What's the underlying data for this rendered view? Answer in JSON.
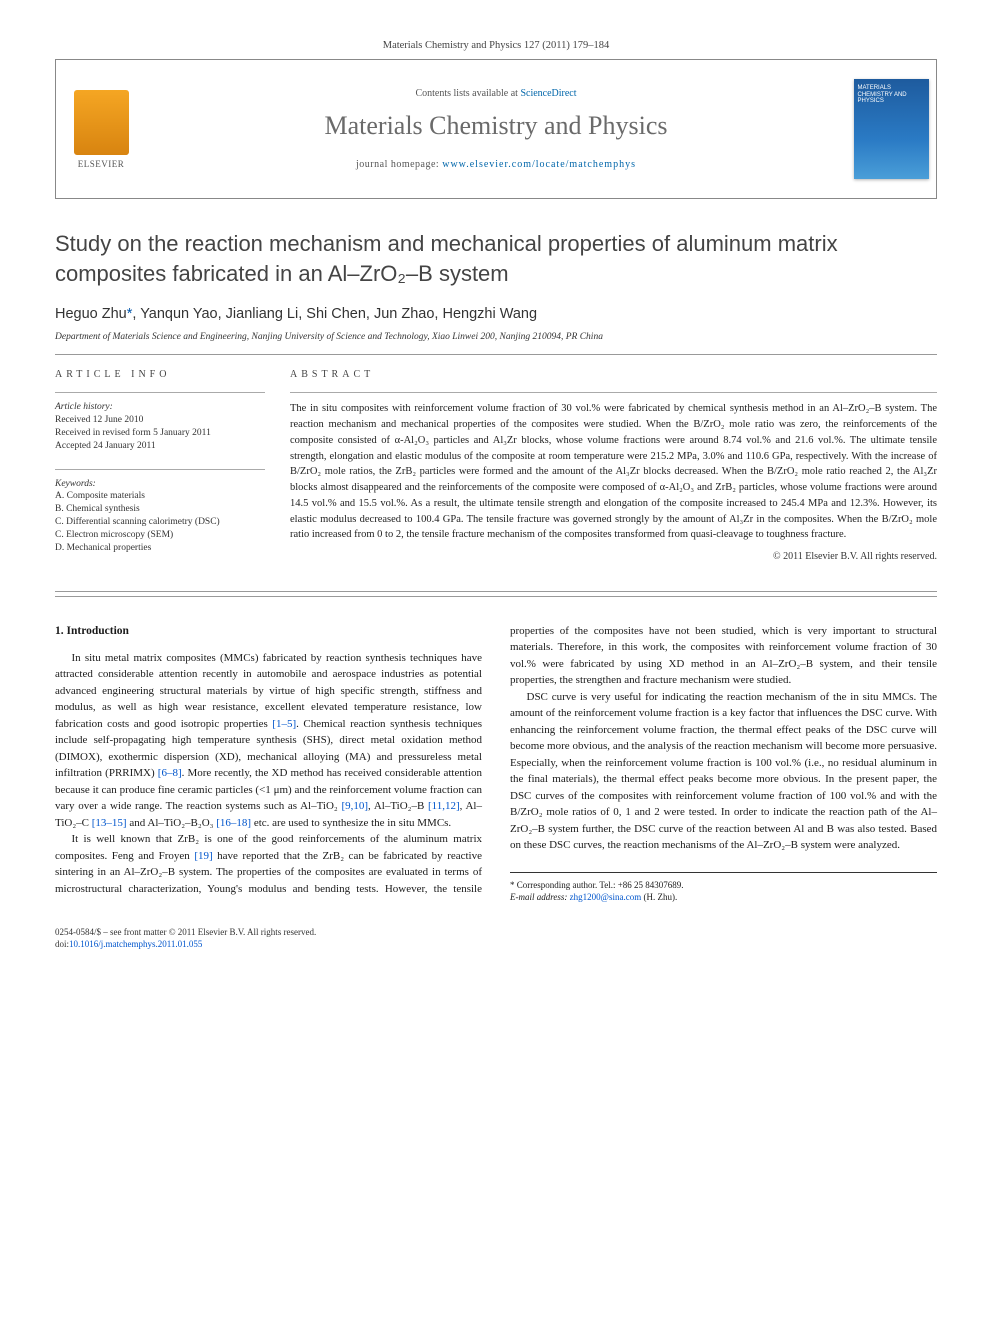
{
  "journal_ref": "Materials Chemistry and Physics 127 (2011) 179–184",
  "header": {
    "contents_prefix": "Contents lists available at ",
    "contents_link": "ScienceDirect",
    "journal_title": "Materials Chemistry and Physics",
    "homepage_prefix": "journal homepage: ",
    "homepage_link": "www.elsevier.com/locate/matchemphys",
    "elsevier_label": "ELSEVIER",
    "cover_text": "MATERIALS CHEMISTRY AND PHYSICS"
  },
  "title": "Study on the reaction mechanism and mechanical properties of aluminum matrix composites fabricated in an Al–ZrO₂–B system",
  "authors_html": "Heguo Zhu<span class='corr'>*</span>, Yanqun Yao, Jianliang Li, Shi Chen, Jun Zhao, Hengzhi Wang",
  "affiliation": "Department of Materials Science and Engineering, Nanjing University of Science and Technology, Xiao Linwei 200, Nanjing 210094, PR China",
  "info": {
    "heading": "article info",
    "history_label": "Article history:",
    "received": "Received 12 June 2010",
    "revised": "Received in revised form 5 January 2011",
    "accepted": "Accepted 24 January 2011",
    "keywords_label": "Keywords:",
    "kw1": "A. Composite materials",
    "kw2": "B. Chemical synthesis",
    "kw3": "C. Differential scanning calorimetry (DSC)",
    "kw4": "C. Electron microscopy (SEM)",
    "kw5": "D. Mechanical properties"
  },
  "abstract": {
    "heading": "abstract",
    "text": "The in situ composites with reinforcement volume fraction of 30 vol.% were fabricated by chemical synthesis method in an Al–ZrO₂–B system. The reaction mechanism and mechanical properties of the composites were studied. When the B/ZrO₂ mole ratio was zero, the reinforcements of the composite consisted of α-Al₂O₃ particles and Al₃Zr blocks, whose volume fractions were around 8.74 vol.% and 21.6 vol.%. The ultimate tensile strength, elongation and elastic modulus of the composite at room temperature were 215.2 MPa, 3.0% and 110.6 GPa, respectively. With the increase of B/ZrO₂ mole ratios, the ZrB₂ particles were formed and the amount of the Al₃Zr blocks decreased. When the B/ZrO₂ mole ratio reached 2, the Al₃Zr blocks almost disappeared and the reinforcements of the composite were composed of α-Al₂O₃ and ZrB₂ particles, whose volume fractions were around 14.5 vol.% and 15.5 vol.%. As a result, the ultimate tensile strength and elongation of the composite increased to 245.4 MPa and 12.3%. However, its elastic modulus decreased to 100.4 GPa. The tensile fracture was governed strongly by the amount of Al₃Zr in the composites. When the B/ZrO₂ mole ratio increased from 0 to 2, the tensile fracture mechanism of the composites transformed from quasi-cleavage to toughness fracture.",
    "copyright": "© 2011 Elsevier B.V. All rights reserved."
  },
  "body": {
    "heading1": "1. Introduction",
    "p1": "In situ metal matrix composites (MMCs) fabricated by reaction synthesis techniques have attracted considerable attention recently in automobile and aerospace industries as potential advanced engineering structural materials by virtue of high specific strength, stiffness and modulus, as well as high wear resistance, excellent elevated temperature resistance, low fabrication costs and good isotropic properties ",
    "r1": "[1–5]",
    "p1b": ". Chemical reaction synthesis techniques include self-propagating high temperature synthesis (SHS), direct metal oxidation method (DIMOX), exothermic dispersion (XD), mechanical alloying (MA) and pressureless metal infiltration (PRRIMX) ",
    "r2": "[6–8]",
    "p1c": ". More recently, the XD method has received considerable attention because it can produce fine ceramic particles (<1 μm) and the reinforcement volume fraction can vary over a wide range. The reaction systems such as Al–TiO₂ ",
    "r3": "[9,10]",
    "p1d": ", Al–TiO₂–B ",
    "r4": "[11,12]",
    "p1e": ", Al–TiO₂–C ",
    "r5": "[13–15]",
    "p1f": " and Al–TiO₂–B₂O₃ ",
    "r6": "[16–18]",
    "p1g": " etc. are used to synthesize the in situ MMCs.",
    "p2": "It is well known that ZrB₂ is one of the good reinforcements of the aluminum matrix composites. Feng and Froyen ",
    "r7": "[19]",
    "p2b": " have reported that the ZrB₂ can be fabricated by reactive sintering in an Al–ZrO₂–B system. The properties of the composites are evaluated in terms of microstructural characterization, Young's modulus and bending tests. However, the tensile properties of the composites have not been studied, which is very important to structural materials. Therefore, in this work, the composites with reinforcement volume fraction of 30 vol.% were fabricated by using XD method in an Al–ZrO₂–B system, and their tensile properties, the strengthen and fracture mechanism were studied.",
    "p3": "DSC curve is very useful for indicating the reaction mechanism of the in situ MMCs. The amount of the reinforcement volume fraction is a key factor that influences the DSC curve. With enhancing the reinforcement volume fraction, the thermal effect peaks of the DSC curve will become more obvious, and the analysis of the reaction mechanism will become more persuasive. Especially, when the reinforcement volume fraction is 100 vol.% (i.e., no residual aluminum in the final materials), the thermal effect peaks become more obvious. In the present paper, the DSC curves of the composites with reinforcement volume fraction of 100 vol.% and with the B/ZrO₂ mole ratios of 0, 1 and 2 were tested. In order to indicate the reaction path of the Al–ZrO₂–B system further, the DSC curve of the reaction between Al and B was also tested. Based on these DSC curves, the reaction mechanisms of the Al–ZrO₂–B system were analyzed."
  },
  "footnote": {
    "corr_label": "* Corresponding author. Tel.: +86 25 84307689.",
    "email_label": "E-mail address: ",
    "email": "zhg1200@sina.com",
    "email_suffix": " (H. Zhu)."
  },
  "footer": {
    "line1": "0254-0584/$ – see front matter © 2011 Elsevier B.V. All rights reserved.",
    "doi_prefix": "doi:",
    "doi": "10.1016/j.matchemphys.2011.01.055"
  }
}
